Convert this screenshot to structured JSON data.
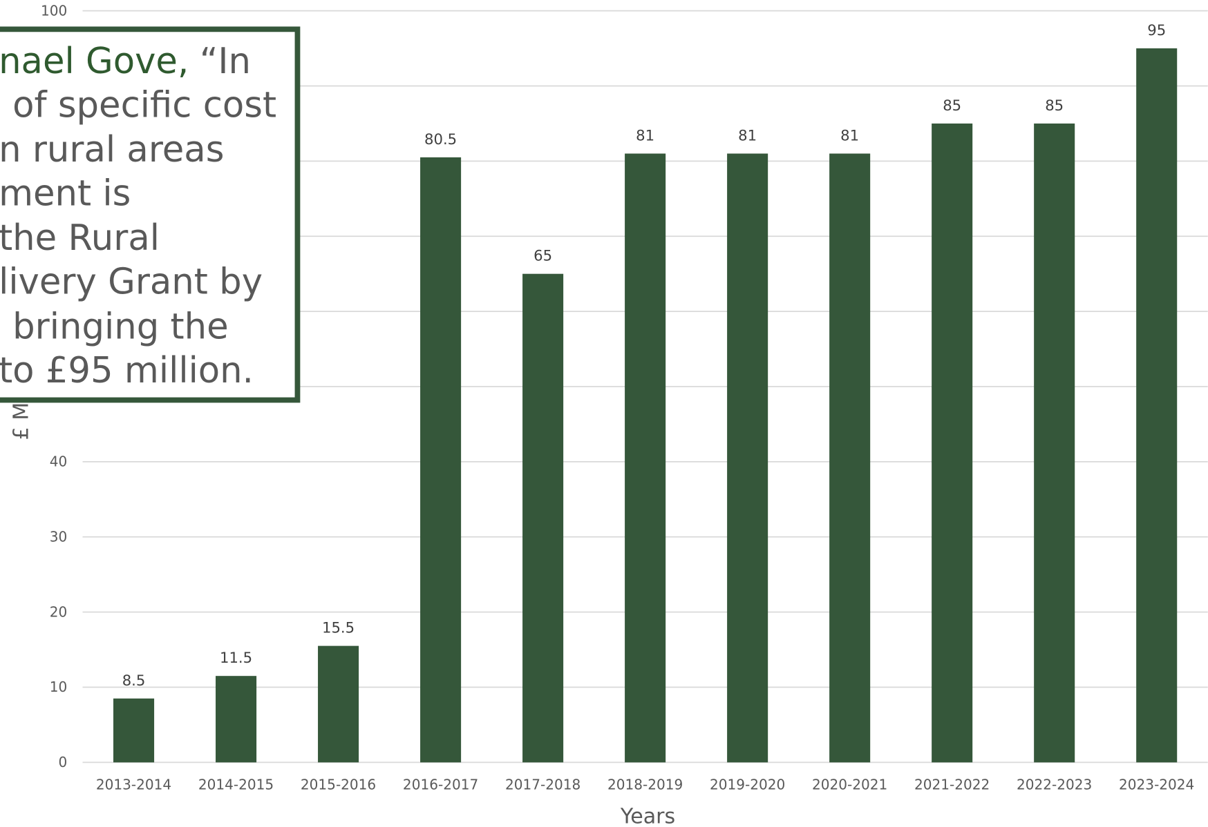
{
  "chart_data": {
    "type": "bar",
    "categories": [
      "2013-2014",
      "2014-2015",
      "2015-2016",
      "2016-2017",
      "2017-2018",
      "2018-2019",
      "2019-2020",
      "2020-2021",
      "2021-2022",
      "2022-2023",
      "2023-2024"
    ],
    "values": [
      8.5,
      11.5,
      15.5,
      80.5,
      65,
      81,
      81,
      81,
      85,
      85,
      95
    ],
    "color": "#35573a",
    "ylim": [
      0,
      100
    ],
    "yticks": [
      0,
      10,
      20,
      30,
      40,
      50,
      60,
      70,
      80,
      90,
      100
    ],
    "grid": true,
    "x_label": "Years",
    "y_label": "£ M",
    "annotation_highlight": "nael Gove,",
    "annotation_lines": [
      "“In",
      "of specific cost",
      "n rural areas",
      "ment is",
      "the Rural",
      "livery Grant by",
      "bringing the",
      "to £95 million."
    ]
  }
}
